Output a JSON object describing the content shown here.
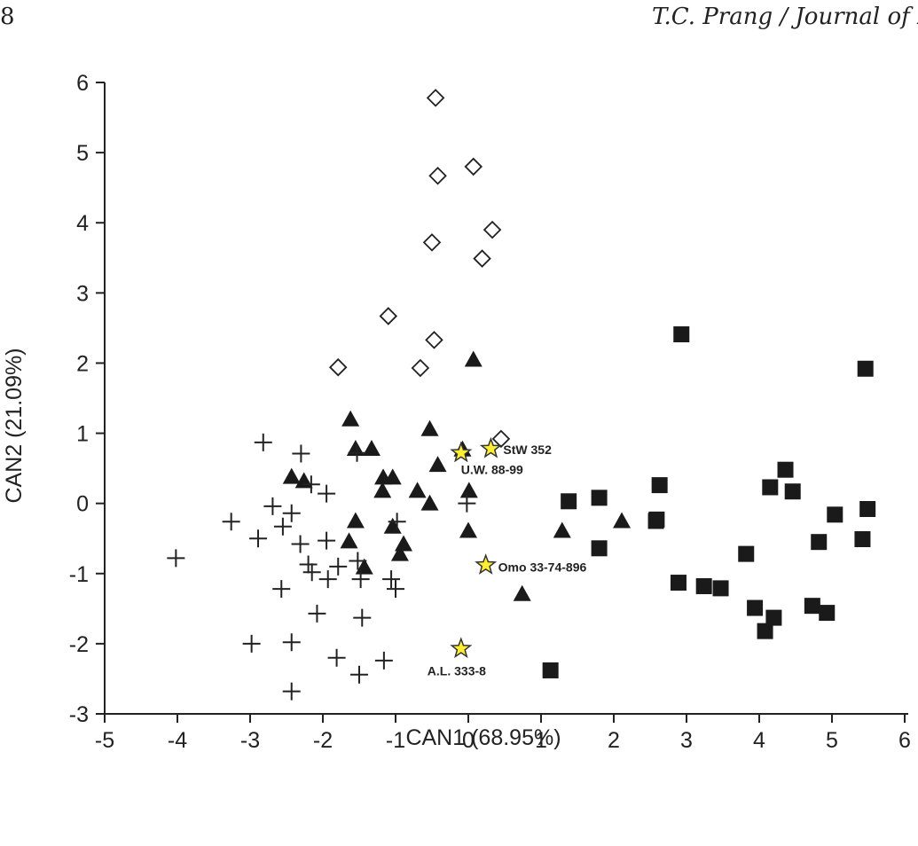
{
  "header": {
    "page_number": "8",
    "running_title": "T.C. Prang / Journal of Hu"
  },
  "chart_data": {
    "type": "scatter",
    "xlabel": "CAN1 (68.95%)",
    "ylabel": "CAN2 (21.09%)",
    "xlim": [
      -5,
      6
    ],
    "ylim": [
      -3,
      6
    ],
    "xticks": [
      "-5",
      "-4",
      "-3",
      "-2",
      "-1",
      "0",
      "1",
      "2",
      "3",
      "4",
      "5",
      "6"
    ],
    "yticks": [
      "-3",
      "-2",
      "-1",
      "0",
      "1",
      "2",
      "3",
      "4",
      "5",
      "6"
    ],
    "grid": false,
    "colors": {
      "marker": "#1a1a1a",
      "star_fill": "#ffee33",
      "star_stroke": "#333333"
    },
    "series": [
      {
        "marker": "diamond-open",
        "points": [
          [
            -0.45,
            5.78
          ],
          [
            0.07,
            4.8
          ],
          [
            -0.42,
            4.67
          ],
          [
            0.33,
            3.9
          ],
          [
            -0.5,
            3.72
          ],
          [
            0.19,
            3.49
          ],
          [
            -1.1,
            2.67
          ],
          [
            -0.47,
            2.33
          ],
          [
            -1.79,
            1.94
          ],
          [
            -0.66,
            1.93
          ],
          [
            0.45,
            0.92
          ]
        ]
      },
      {
        "marker": "square-filled",
        "points": [
          [
            2.93,
            2.41
          ],
          [
            5.46,
            1.92
          ],
          [
            4.36,
            0.48
          ],
          [
            2.63,
            0.26
          ],
          [
            4.15,
            0.23
          ],
          [
            4.46,
            0.17
          ],
          [
            1.8,
            0.08
          ],
          [
            1.38,
            0.03
          ],
          [
            5.49,
            -0.08
          ],
          [
            5.04,
            -0.16
          ],
          [
            2.59,
            -0.23
          ],
          [
            2.58,
            -0.25
          ],
          [
            5.42,
            -0.51
          ],
          [
            4.82,
            -0.55
          ],
          [
            1.8,
            -0.64
          ],
          [
            3.82,
            -0.72
          ],
          [
            2.89,
            -1.13
          ],
          [
            3.24,
            -1.18
          ],
          [
            3.47,
            -1.21
          ],
          [
            4.73,
            -1.46
          ],
          [
            3.94,
            -1.49
          ],
          [
            4.93,
            -1.56
          ],
          [
            4.2,
            -1.63
          ],
          [
            4.08,
            -1.82
          ],
          [
            1.13,
            -2.38
          ]
        ]
      },
      {
        "marker": "triangle-filled",
        "points": [
          [
            0.07,
            2.05
          ],
          [
            -1.62,
            1.2
          ],
          [
            -0.53,
            1.06
          ],
          [
            -1.55,
            0.78
          ],
          [
            -1.33,
            0.78
          ],
          [
            -0.08,
            0.77
          ],
          [
            -0.42,
            0.55
          ],
          [
            -2.43,
            0.38
          ],
          [
            -1.17,
            0.37
          ],
          [
            -1.04,
            0.37
          ],
          [
            -2.26,
            0.32
          ],
          [
            -1.18,
            0.18
          ],
          [
            -0.7,
            0.18
          ],
          [
            0.01,
            0.18
          ],
          [
            -0.53,
            0.0
          ],
          [
            -1.55,
            -0.25
          ],
          [
            2.11,
            -0.25
          ],
          [
            -1.04,
            -0.33
          ],
          [
            1.29,
            -0.39
          ],
          [
            0.0,
            -0.39
          ],
          [
            -1.64,
            -0.54
          ],
          [
            -0.89,
            -0.58
          ],
          [
            -1.43,
            -0.91
          ],
          [
            -0.94,
            -0.72
          ],
          [
            0.74,
            -1.29
          ]
        ]
      },
      {
        "marker": "plus",
        "points": [
          [
            -2.82,
            0.87
          ],
          [
            -2.3,
            0.71
          ],
          [
            -1.53,
            0.72
          ],
          [
            -2.16,
            0.27
          ],
          [
            -1.95,
            0.14
          ],
          [
            -2.69,
            -0.04
          ],
          [
            -2.43,
            -0.14
          ],
          [
            -0.02,
            0.0
          ],
          [
            -3.26,
            -0.26
          ],
          [
            -2.55,
            -0.33
          ],
          [
            -0.98,
            -0.26
          ],
          [
            -2.89,
            -0.5
          ],
          [
            -2.31,
            -0.58
          ],
          [
            -1.95,
            -0.53
          ],
          [
            -1.52,
            -0.82
          ],
          [
            -2.2,
            -0.87
          ],
          [
            -2.15,
            -0.98
          ],
          [
            -1.79,
            -0.9
          ],
          [
            -1.93,
            -1.08
          ],
          [
            -1.48,
            -1.08
          ],
          [
            -1.06,
            -1.08
          ],
          [
            -1.0,
            -1.22
          ],
          [
            -2.57,
            -1.22
          ],
          [
            -4.02,
            -0.78
          ],
          [
            -2.08,
            -1.57
          ],
          [
            -1.46,
            -1.63
          ],
          [
            -2.98,
            -2.0
          ],
          [
            -2.43,
            -1.98
          ],
          [
            -1.81,
            -2.2
          ],
          [
            -1.16,
            -2.24
          ],
          [
            -1.5,
            -2.44
          ],
          [
            -2.43,
            -2.68
          ]
        ]
      },
      {
        "marker": "star",
        "points": [
          [
            0.31,
            0.78
          ],
          [
            -0.1,
            0.72
          ],
          [
            0.24,
            -0.88
          ],
          [
            -0.1,
            -2.07
          ]
        ]
      }
    ],
    "annotations": [
      {
        "text": "StW 352",
        "x": 0.31,
        "y": 0.78
      },
      {
        "text": "U.W. 88-99",
        "x": -0.1,
        "y": 0.72
      },
      {
        "text": "Omo 33-74-896",
        "x": 0.24,
        "y": -0.88
      },
      {
        "text": "A.L. 333-8",
        "x": -0.1,
        "y": -2.07
      }
    ]
  }
}
